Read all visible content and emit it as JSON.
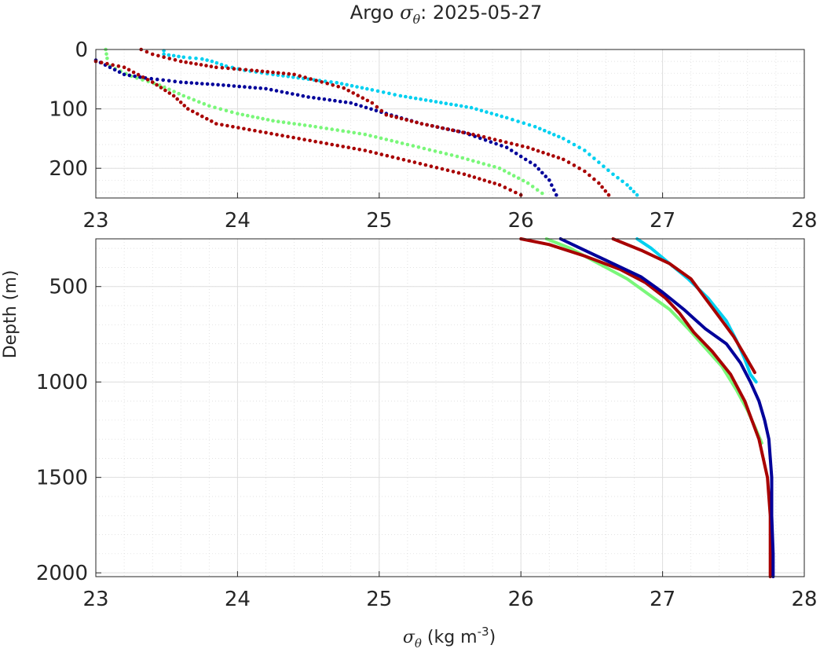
{
  "title": {
    "prefix": "Argo ",
    "symbol": "σ",
    "sub": "θ",
    "suffix": ": 2025-05-27"
  },
  "xlabel": {
    "symbol": "σ",
    "sub": "θ",
    "units_pre": " (kg m",
    "units_sup": "-3",
    "units_post": ")"
  },
  "ylabel": "Depth (m)",
  "chart_data": [
    {
      "type": "scatter",
      "panel": "top",
      "xlim": [
        23,
        28
      ],
      "ylim": [
        0,
        250
      ],
      "y_reversed": true,
      "grid": true,
      "minor_grid": true,
      "xticks": [
        "23",
        "24",
        "25",
        "26",
        "27",
        "28"
      ],
      "yticks": [
        "0",
        "100",
        "200"
      ],
      "series": [
        {
          "color": "#00d0f0",
          "marker": "dot",
          "points": [
            [
              23.48,
              2
            ],
            [
              23.48,
              8
            ],
            [
              23.62,
              13
            ],
            [
              23.75,
              16
            ],
            [
              23.82,
              20
            ],
            [
              23.92,
              28
            ],
            [
              24.05,
              35
            ],
            [
              24.25,
              42
            ],
            [
              24.5,
              50
            ],
            [
              24.7,
              56
            ],
            [
              24.95,
              68
            ],
            [
              25.15,
              78
            ],
            [
              25.4,
              88
            ],
            [
              25.65,
              98
            ],
            [
              25.9,
              115
            ],
            [
              26.1,
              130
            ],
            [
              26.3,
              150
            ],
            [
              26.45,
              170
            ],
            [
              26.55,
              190
            ],
            [
              26.65,
              210
            ],
            [
              26.75,
              228
            ],
            [
              26.82,
              245
            ]
          ]
        },
        {
          "color": "#7af77a",
          "marker": "dot",
          "points": [
            [
              23.07,
              0
            ],
            [
              23.08,
              15
            ],
            [
              23.1,
              28
            ],
            [
              23.25,
              45
            ],
            [
              23.45,
              60
            ],
            [
              23.62,
              78
            ],
            [
              23.8,
              95
            ],
            [
              24.0,
              108
            ],
            [
              24.25,
              120
            ],
            [
              24.55,
              130
            ],
            [
              24.9,
              143
            ],
            [
              25.2,
              160
            ],
            [
              25.55,
              180
            ],
            [
              25.85,
              200
            ],
            [
              26.05,
              225
            ],
            [
              26.15,
              242
            ]
          ]
        },
        {
          "color": "#00009a",
          "marker": "dot",
          "points": [
            [
              23.0,
              18
            ],
            [
              23.1,
              30
            ],
            [
              23.2,
              42
            ],
            [
              23.35,
              48
            ],
            [
              23.6,
              55
            ],
            [
              23.9,
              60
            ],
            [
              24.2,
              66
            ],
            [
              24.5,
              80
            ],
            [
              24.8,
              90
            ],
            [
              25.05,
              108
            ],
            [
              25.3,
              125
            ],
            [
              25.6,
              140
            ],
            [
              25.9,
              165
            ],
            [
              26.1,
              195
            ],
            [
              26.2,
              220
            ],
            [
              26.25,
              245
            ]
          ]
        },
        {
          "color": "#a80000",
          "marker": "dot",
          "points": [
            [
              23.32,
              0
            ],
            [
              23.4,
              8
            ],
            [
              23.6,
              20
            ],
            [
              23.85,
              30
            ],
            [
              24.1,
              35
            ],
            [
              24.4,
              42
            ],
            [
              24.75,
              65
            ],
            [
              24.95,
              90
            ],
            [
              25.05,
              110
            ],
            [
              25.3,
              125
            ],
            [
              25.7,
              145
            ],
            [
              26.05,
              165
            ],
            [
              26.3,
              185
            ],
            [
              26.45,
              205
            ],
            [
              26.55,
              225
            ],
            [
              26.62,
              245
            ]
          ]
        },
        {
          "color": "#a80000",
          "marker": "dot",
          "points": [
            [
              23.0,
              20
            ],
            [
              23.2,
              30
            ],
            [
              23.4,
              55
            ],
            [
              23.55,
              78
            ],
            [
              23.65,
              100
            ],
            [
              23.85,
              125
            ],
            [
              24.2,
              140
            ],
            [
              24.55,
              155
            ],
            [
              24.9,
              170
            ],
            [
              25.25,
              190
            ],
            [
              25.6,
              210
            ],
            [
              25.85,
              228
            ],
            [
              26.0,
              245
            ]
          ]
        }
      ]
    },
    {
      "type": "line",
      "panel": "bottom",
      "xlim": [
        23,
        28
      ],
      "ylim": [
        250,
        2020
      ],
      "y_reversed": true,
      "grid": true,
      "minor_grid": true,
      "xticks": [
        "23",
        "24",
        "25",
        "26",
        "27",
        "28"
      ],
      "yticks": [
        "500",
        "1000",
        "1500",
        "2000"
      ],
      "series": [
        {
          "color": "#00d0f0",
          "points": [
            [
              26.82,
              250
            ],
            [
              26.92,
              300
            ],
            [
              27.05,
              380
            ],
            [
              27.18,
              460
            ],
            [
              27.32,
              560
            ],
            [
              27.45,
              680
            ],
            [
              27.52,
              780
            ],
            [
              27.58,
              880
            ],
            [
              27.62,
              960
            ],
            [
              27.66,
              1000
            ]
          ]
        },
        {
          "color": "#7af77a",
          "points": [
            [
              26.18,
              250
            ],
            [
              26.35,
              300
            ],
            [
              26.55,
              380
            ],
            [
              26.75,
              460
            ],
            [
              26.9,
              540
            ],
            [
              27.05,
              620
            ],
            [
              27.18,
              720
            ],
            [
              27.3,
              820
            ],
            [
              27.42,
              920
            ],
            [
              27.52,
              1040
            ],
            [
              27.6,
              1150
            ],
            [
              27.66,
              1250
            ],
            [
              27.7,
              1320
            ]
          ]
        },
        {
          "color": "#a80000",
          "points": [
            [
              26.65,
              250
            ],
            [
              26.85,
              310
            ],
            [
              27.05,
              380
            ],
            [
              27.2,
              460
            ],
            [
              27.3,
              560
            ],
            [
              27.4,
              660
            ],
            [
              27.5,
              760
            ],
            [
              27.58,
              860
            ],
            [
              27.65,
              950
            ]
          ]
        },
        {
          "color": "#a80000",
          "points": [
            [
              26.0,
              250
            ],
            [
              26.2,
              280
            ],
            [
              26.45,
              340
            ],
            [
              26.7,
              410
            ],
            [
              26.88,
              480
            ],
            [
              27.02,
              560
            ],
            [
              27.12,
              640
            ],
            [
              27.22,
              740
            ],
            [
              27.35,
              840
            ],
            [
              27.48,
              960
            ],
            [
              27.58,
              1100
            ],
            [
              27.68,
              1300
            ],
            [
              27.74,
              1500
            ],
            [
              27.76,
              1700
            ],
            [
              27.76,
              1900
            ],
            [
              27.76,
              2020
            ]
          ]
        },
        {
          "color": "#00009a",
          "points": [
            [
              26.28,
              250
            ],
            [
              26.45,
              310
            ],
            [
              26.65,
              380
            ],
            [
              26.85,
              450
            ],
            [
              27.0,
              530
            ],
            [
              27.15,
              620
            ],
            [
              27.3,
              720
            ],
            [
              27.45,
              800
            ],
            [
              27.55,
              900
            ],
            [
              27.62,
              1000
            ],
            [
              27.68,
              1100
            ],
            [
              27.72,
              1200
            ],
            [
              27.75,
              1300
            ],
            [
              27.76,
              1400
            ],
            [
              27.77,
              1500
            ],
            [
              27.77,
              1700
            ],
            [
              27.78,
              1900
            ],
            [
              27.78,
              2020
            ]
          ]
        }
      ]
    }
  ]
}
